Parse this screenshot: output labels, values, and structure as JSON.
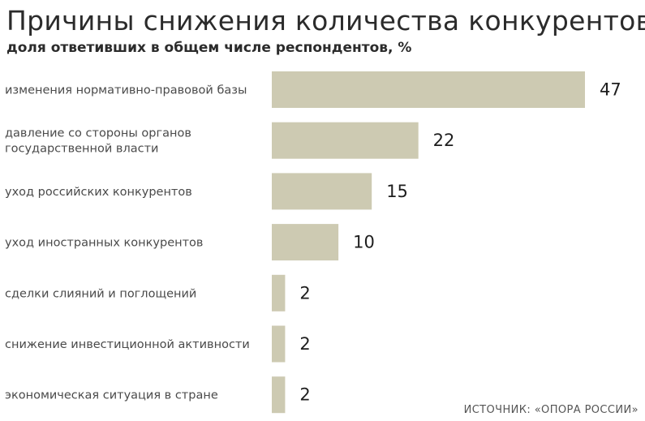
{
  "chart_data": {
    "type": "bar",
    "orientation": "horizontal",
    "title": "Причины снижения количества конкурентов",
    "subtitle": "доля ответивших в общем числе респондентов, %",
    "categories": [
      [
        "изменения нормативно-правовой базы"
      ],
      [
        "давление со стороны органов",
        "государственной власти"
      ],
      [
        "уход российских конкурентов"
      ],
      [
        "уход иностранных конкурентов"
      ],
      [
        "сделки слияний и поглощений"
      ],
      [
        "снижение инвестиционной активности"
      ],
      [
        "экономическая ситуация в стране"
      ]
    ],
    "values": [
      47,
      22,
      15,
      10,
      2,
      2,
      2
    ],
    "bar_color": "#cdcab2",
    "xlim": [
      0,
      47
    ]
  },
  "source": "ИСТОЧНИК: «ОПОРА РОССИИ»"
}
